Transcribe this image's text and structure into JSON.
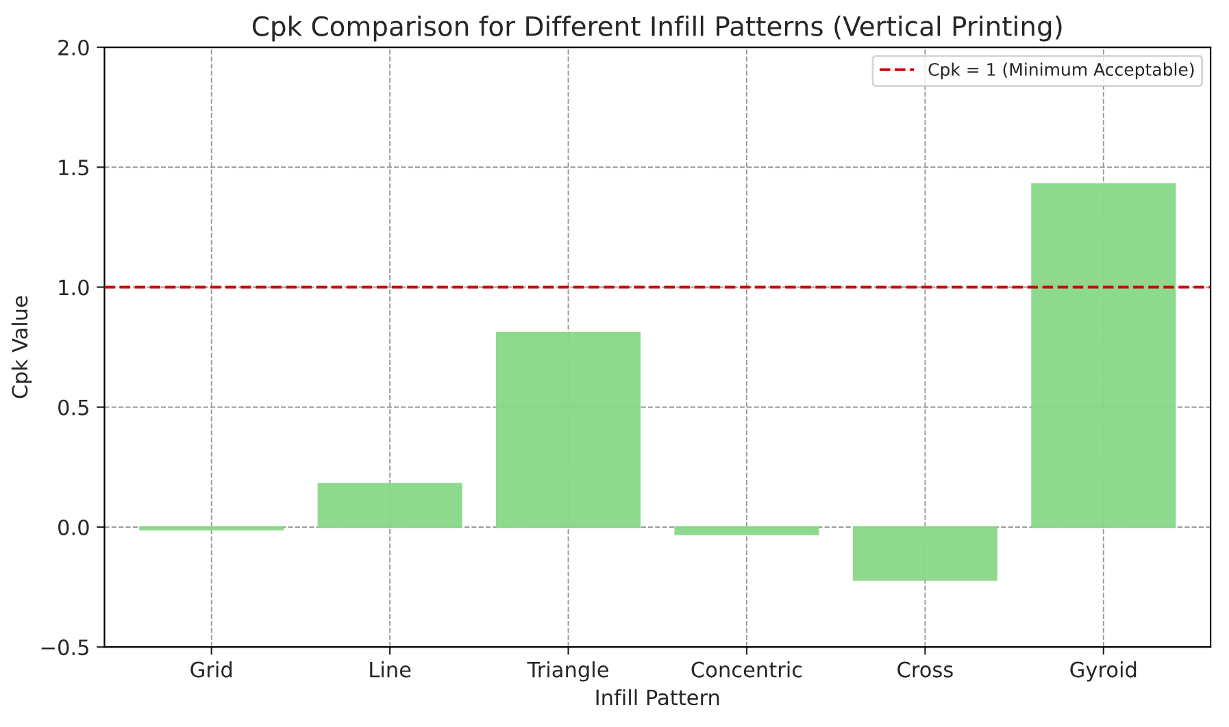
{
  "chart_data": {
    "type": "bar",
    "title": "Cpk Comparison for Different Infill Patterns (Vertical Printing)",
    "xlabel": "Infill Pattern",
    "ylabel": "Cpk Value",
    "categories": [
      "Grid",
      "Line",
      "Triangle",
      "Concentric",
      "Cross",
      "Gyroid"
    ],
    "values": [
      -0.01,
      0.18,
      0.81,
      -0.03,
      -0.22,
      1.43
    ],
    "color": "#88d788",
    "ylim": [
      -0.5,
      2.0
    ],
    "yticks": [
      {
        "value": -0.5,
        "label": "−0.5"
      },
      {
        "value": 0.0,
        "label": "0.0"
      },
      {
        "value": 0.5,
        "label": "0.5"
      },
      {
        "value": 1.0,
        "label": "1.0"
      },
      {
        "value": 1.5,
        "label": "1.5"
      },
      {
        "value": 2.0,
        "label": "2.0"
      }
    ],
    "ref_lines": [
      {
        "axis": "y",
        "value": 1,
        "label": "Cpk = 1 (Minimum Acceptable)",
        "color": "#cc0000",
        "line_style": "dashed"
      }
    ],
    "grid": true,
    "legend": "top right"
  }
}
